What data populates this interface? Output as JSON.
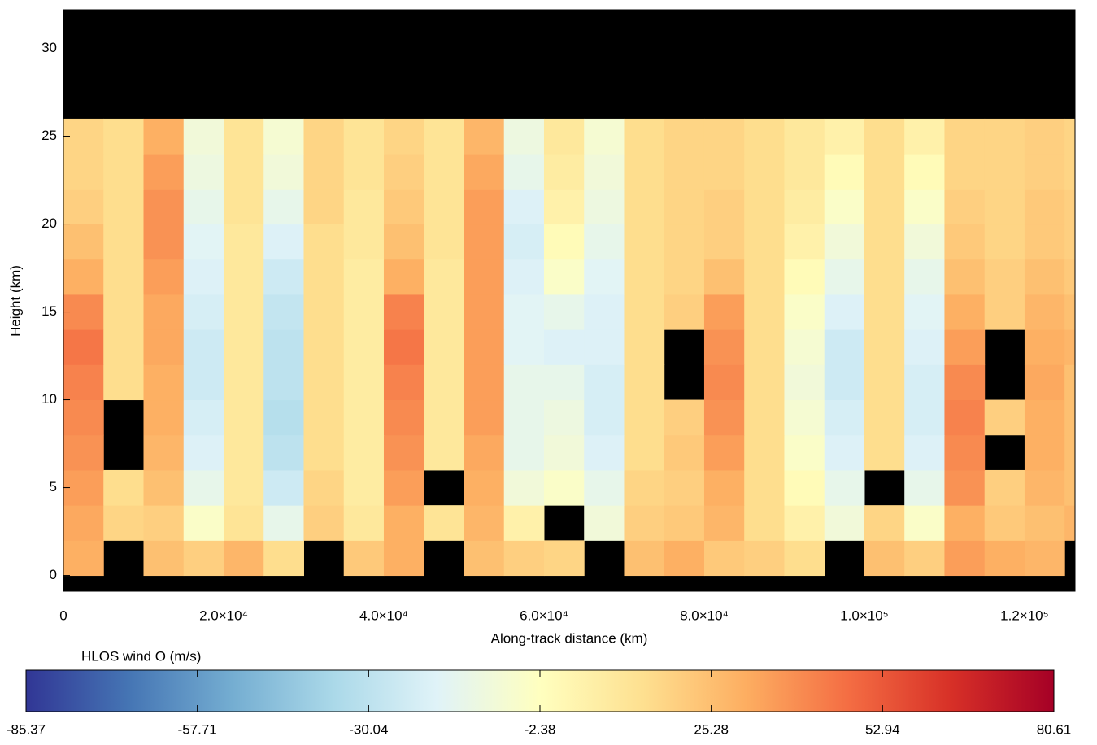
{
  "chart_data": {
    "type": "heatmap",
    "x_label": "Along-track distance (km)",
    "y_label": "Height (km)",
    "xlim": [
      0,
      126300
    ],
    "ylim": [
      -0.9,
      32.2
    ],
    "xticks": [
      0,
      {
        "value": 20000,
        "label": "2.0×10⁴"
      },
      {
        "value": 40000,
        "label": "4.0×10⁴"
      },
      {
        "value": 60000,
        "label": "6.0×10⁴"
      },
      {
        "value": 80000,
        "label": "8.0×10⁴"
      },
      {
        "value": 100000,
        "label": "1.0×10⁵"
      },
      {
        "value": 120000,
        "label": "1.2×10⁵"
      }
    ],
    "yticks": [
      0,
      5,
      10,
      15,
      20,
      25,
      30
    ],
    "x_edges": [
      0,
      5000,
      10000,
      15000,
      20000,
      25000,
      30000,
      35000,
      40000,
      45000,
      50000,
      55000,
      60000,
      65000,
      70000,
      75000,
      80000,
      85000,
      90000,
      95000,
      100000,
      105000,
      110000,
      115000,
      120000,
      125000,
      126300
    ],
    "y_edges": [
      0,
      2,
      4,
      6,
      8,
      10,
      12,
      14,
      16,
      18,
      20,
      22,
      24,
      26
    ],
    "values": [
      [
        30,
        null,
        25,
        20,
        28,
        15,
        null,
        22,
        30,
        null,
        25,
        20,
        18,
        null,
        25,
        30,
        22,
        20,
        15,
        null,
        25,
        20,
        35,
        30,
        28,
        null
      ],
      [
        32,
        18,
        20,
        -5,
        12,
        -15,
        20,
        10,
        30,
        12,
        28,
        5,
        null,
        -10,
        20,
        22,
        28,
        15,
        5,
        -10,
        18,
        -5,
        30,
        22,
        25,
        28
      ],
      [
        35,
        15,
        25,
        -15,
        10,
        -25,
        18,
        8,
        35,
        null,
        30,
        -10,
        -5,
        -15,
        18,
        20,
        30,
        15,
        0,
        -15,
        null,
        -15,
        38,
        20,
        28,
        25
      ],
      [
        38,
        null,
        28,
        -20,
        10,
        -30,
        15,
        8,
        38,
        10,
        32,
        -15,
        -10,
        -20,
        15,
        22,
        35,
        15,
        -5,
        -20,
        15,
        -20,
        40,
        null,
        30,
        25
      ],
      [
        40,
        null,
        30,
        -22,
        10,
        -32,
        15,
        8,
        40,
        10,
        35,
        -15,
        -12,
        -22,
        15,
        20,
        38,
        15,
        -8,
        -22,
        15,
        -22,
        42,
        20,
        30,
        25
      ],
      [
        42,
        15,
        30,
        -25,
        10,
        -30,
        15,
        8,
        42,
        10,
        35,
        -15,
        -15,
        -22,
        15,
        null,
        40,
        15,
        -10,
        -25,
        15,
        -22,
        40,
        null,
        32,
        25
      ],
      [
        45,
        15,
        32,
        -25,
        10,
        -30,
        15,
        8,
        45,
        10,
        35,
        -18,
        -20,
        -20,
        15,
        null,
        38,
        15,
        -8,
        -25,
        15,
        -20,
        35,
        null,
        30,
        28
      ],
      [
        40,
        15,
        32,
        -22,
        10,
        -28,
        15,
        8,
        42,
        10,
        35,
        -18,
        -15,
        -20,
        15,
        20,
        35,
        15,
        -5,
        -20,
        15,
        -18,
        30,
        20,
        28,
        25
      ],
      [
        30,
        15,
        35,
        -20,
        10,
        -25,
        15,
        8,
        30,
        10,
        35,
        -20,
        -5,
        -18,
        15,
        18,
        25,
        15,
        0,
        -15,
        15,
        -15,
        25,
        20,
        25,
        22
      ],
      [
        25,
        15,
        38,
        -18,
        10,
        -20,
        15,
        10,
        25,
        12,
        35,
        -22,
        0,
        -15,
        15,
        18,
        20,
        15,
        5,
        -10,
        15,
        -10,
        22,
        18,
        22,
        20
      ],
      [
        20,
        15,
        38,
        -15,
        12,
        -15,
        18,
        10,
        22,
        12,
        35,
        -20,
        5,
        -12,
        15,
        18,
        20,
        15,
        8,
        -5,
        15,
        -5,
        20,
        18,
        22,
        20
      ],
      [
        18,
        15,
        35,
        -12,
        12,
        -10,
        18,
        12,
        20,
        12,
        32,
        -15,
        8,
        -10,
        15,
        18,
        18,
        15,
        10,
        0,
        15,
        0,
        18,
        18,
        20,
        18
      ],
      [
        18,
        15,
        30,
        -10,
        12,
        -8,
        18,
        12,
        18,
        12,
        28,
        -12,
        10,
        -8,
        15,
        18,
        18,
        15,
        10,
        5,
        15,
        5,
        18,
        18,
        20,
        18
      ]
    ],
    "colormap": "RdYlBu_r",
    "colorbar_label": "HLOS wind O (m/s)",
    "clim": [
      -85.37,
      80.61
    ],
    "cticks": [
      -85.37,
      -57.71,
      -30.04,
      -2.38,
      25.28,
      52.94,
      80.61
    ]
  }
}
